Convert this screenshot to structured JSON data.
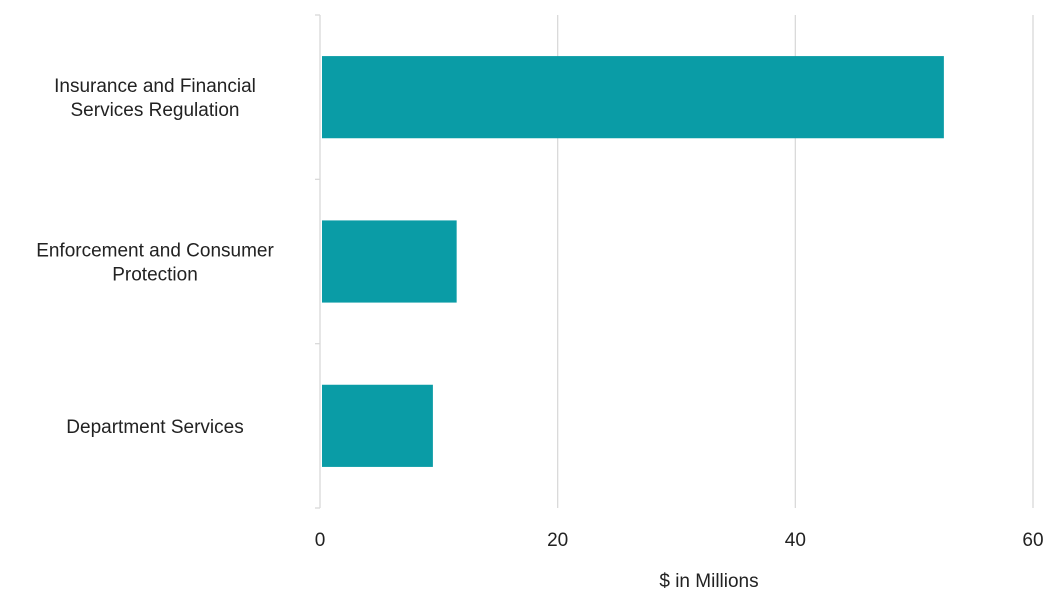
{
  "chart_data": {
    "type": "bar",
    "orientation": "horizontal",
    "categories": [
      [
        "Insurance and Financial",
        "Services Regulation"
      ],
      [
        "Enforcement and Consumer",
        "Protection"
      ],
      [
        "Department Services"
      ]
    ],
    "values": [
      52.5,
      11.5,
      9.5
    ],
    "xlabel": "$ in Millions",
    "xlim": [
      0,
      60
    ],
    "xticks": [
      0,
      20,
      40,
      60
    ],
    "grid": "vertical",
    "bar_color": "#0a9ca6",
    "grid_color": "#d9d9d9"
  }
}
